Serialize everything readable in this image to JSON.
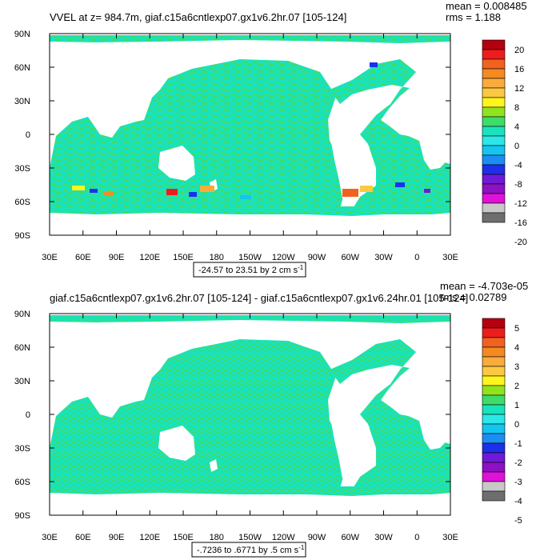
{
  "colors": {
    "ocean_base": "#19e3bd",
    "ocean_alt": "#3fdc6a",
    "land": "#ffffff",
    "frame": "#000000",
    "palette": [
      "#b5000f",
      "#ed1d1d",
      "#f2621f",
      "#f48a21",
      "#f9ab3b",
      "#fcc841",
      "#fdf51b",
      "#91e31e",
      "#3fdc6a",
      "#19e3bd",
      "#2be7e7",
      "#14c5f0",
      "#1b8ef4",
      "#1d2fe9",
      "#6f1ad9",
      "#8e11c4",
      "#e011d8",
      "#c8c8c8",
      "#6e6e6e"
    ]
  },
  "chart_data": [
    {
      "type": "heatmap",
      "title": "VVEL at z= 984.7m, giaf.c15a6cntlexp07.gx1v6.2hr.07 [105-124]",
      "stats": [
        "mean = 0.008485",
        "rms = 1.188"
      ],
      "x_tick_labels": [
        "30E",
        "60E",
        "90E",
        "120E",
        "150E",
        "180",
        "150W",
        "120W",
        "90W",
        "60W",
        "30W",
        "0",
        "30E"
      ],
      "y_tick_labels": [
        "90N",
        "60N",
        "30N",
        "0",
        "30S",
        "60S",
        "90S"
      ],
      "xlim": [
        30,
        390
      ],
      "ylim": [
        -90,
        90
      ],
      "colorbar_labels": [
        "20",
        "16",
        "12",
        "8",
        "4",
        "0",
        "-4",
        "-8",
        "-12",
        "-16",
        "-20"
      ],
      "range_label": "-24.57 to 23.51 by 2 cm s",
      "range_units_sup": "-1"
    },
    {
      "type": "heatmap",
      "title": "giaf.c15a6cntlexp07.gx1v6.2hr.07 [105-124] - giaf.c15a6cntlexp07.gx1v6.24hr.01 [105-124]",
      "stats": [
        "mean = -4.703e-05",
        "rms = 0.02789"
      ],
      "x_tick_labels": [
        "30E",
        "60E",
        "90E",
        "120E",
        "150E",
        "180",
        "150W",
        "120W",
        "90W",
        "60W",
        "30W",
        "0",
        "30E"
      ],
      "y_tick_labels": [
        "90N",
        "60N",
        "30N",
        "0",
        "30S",
        "60S",
        "90S"
      ],
      "xlim": [
        30,
        390
      ],
      "ylim": [
        -90,
        90
      ],
      "colorbar_labels": [
        "5",
        "4",
        "3",
        "2",
        "1",
        "0",
        "-1",
        "-2",
        "-3",
        "-4",
        "-5"
      ],
      "range_label": "-.7236 to .6771 by .5 cm s",
      "range_units_sup": "-1"
    }
  ]
}
